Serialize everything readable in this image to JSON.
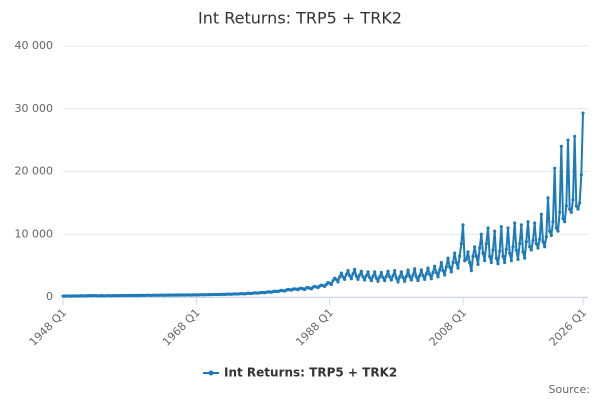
{
  "chart_data": {
    "type": "line",
    "title": "Int Returns: TRP5 + TRK2",
    "source": "Source:",
    "categories": [
      "1948 Q1",
      null,
      null,
      null,
      null,
      null,
      null,
      null,
      null,
      null,
      null,
      null,
      null,
      null,
      null,
      null,
      null,
      null,
      null,
      null,
      null,
      null,
      null,
      null,
      null,
      null,
      null,
      null,
      null,
      null,
      null,
      null,
      null,
      null,
      null,
      null,
      null,
      null,
      null,
      null,
      null,
      null,
      null,
      null,
      null,
      null,
      null,
      null,
      null,
      null,
      null,
      null,
      null,
      null,
      null,
      null,
      null,
      null,
      null,
      null,
      null,
      null,
      null,
      null,
      null,
      null,
      null,
      null,
      null,
      null,
      null,
      null,
      null,
      null,
      null,
      null,
      null,
      null,
      null,
      null,
      "1968 Q1",
      null,
      null,
      null,
      null,
      null,
      null,
      null,
      null,
      null,
      null,
      null,
      null,
      null,
      null,
      null,
      null,
      null,
      null,
      null,
      null,
      null,
      null,
      null,
      null,
      null,
      null,
      null,
      null,
      null,
      null,
      null,
      null,
      null,
      null,
      null,
      null,
      null,
      null,
      null,
      null,
      null,
      null,
      null,
      null,
      null,
      null,
      null,
      null,
      null,
      null,
      null,
      null,
      null,
      null,
      null,
      null,
      null,
      null,
      null,
      null,
      null,
      null,
      null,
      null,
      null,
      null,
      null,
      null,
      null,
      null,
      null,
      null,
      null,
      null,
      null,
      null,
      null,
      null,
      null,
      "1988 Q1",
      null,
      null,
      null,
      null,
      null,
      null,
      null,
      null,
      null,
      null,
      null,
      null,
      null,
      null,
      null,
      null,
      null,
      null,
      null,
      null,
      null,
      null,
      null,
      null,
      null,
      null,
      null,
      null,
      null,
      null,
      null,
      null,
      null,
      null,
      null,
      null,
      null,
      null,
      null,
      null,
      null,
      null,
      null,
      null,
      null,
      null,
      null,
      null,
      null,
      null,
      null,
      null,
      null,
      null,
      null,
      null,
      null,
      null,
      null,
      null,
      null,
      null,
      null,
      null,
      null,
      null,
      null,
      null,
      null,
      null,
      null,
      null,
      null,
      null,
      null,
      null,
      null,
      null,
      null,
      "2008 Q1",
      null,
      null,
      null,
      null,
      null,
      null,
      null,
      null,
      null,
      null,
      null,
      null,
      null,
      null,
      null,
      null,
      null,
      null,
      null,
      null,
      null,
      null,
      null,
      null,
      null,
      null,
      null,
      null,
      null,
      null,
      null,
      null,
      null,
      null,
      null,
      null,
      null,
      null,
      null,
      null,
      null,
      null,
      null,
      null,
      null,
      null,
      null,
      null,
      null,
      null,
      null,
      null,
      null,
      null,
      null,
      null,
      null,
      null,
      null,
      null,
      null,
      null,
      null,
      null,
      null,
      null,
      null,
      null,
      null,
      null,
      null,
      "2026 Q1"
    ],
    "series": [
      {
        "name": "Int Returns: TRP5 + TRK2",
        "color": "#1f7ab8",
        "values": [
          150,
          140,
          160,
          170,
          160,
          150,
          170,
          180,
          170,
          160,
          190,
          200,
          190,
          180,
          200,
          210,
          220,
          200,
          210,
          230,
          210,
          190,
          200,
          220,
          200,
          190,
          210,
          220,
          210,
          200,
          220,
          230,
          220,
          210,
          230,
          240,
          230,
          220,
          240,
          250,
          240,
          230,
          250,
          260,
          250,
          240,
          260,
          270,
          260,
          250,
          270,
          280,
          270,
          260,
          280,
          290,
          280,
          270,
          290,
          300,
          290,
          280,
          300,
          310,
          300,
          290,
          310,
          320,
          310,
          300,
          320,
          330,
          320,
          310,
          330,
          340,
          330,
          320,
          340,
          350,
          340,
          330,
          350,
          370,
          360,
          350,
          370,
          390,
          380,
          370,
          390,
          410,
          400,
          390,
          410,
          430,
          420,
          410,
          440,
          460,
          450,
          440,
          470,
          500,
          480,
          470,
          510,
          540,
          520,
          500,
          550,
          600,
          580,
          560,
          620,
          660,
          640,
          620,
          680,
          720,
          700,
          680,
          760,
          820,
          800,
          760,
          860,
          920,
          900,
          860,
          980,
          1050,
          1000,
          950,
          1100,
          1200,
          1150,
          1100,
          1250,
          1300,
          1250,
          1150,
          1350,
          1400,
          1300,
          1200,
          1450,
          1500,
          1400,
          1300,
          1550,
          1700,
          1600,
          1500,
          1750,
          1900,
          1800,
          1700,
          2000,
          2300,
          2200,
          2000,
          2600,
          3000,
          2800,
          2400,
          3200,
          3800,
          3200,
          2800,
          3600,
          4200,
          3400,
          2900,
          3700,
          4400,
          3300,
          2800,
          3500,
          4100,
          3200,
          2700,
          3400,
          4000,
          3100,
          2600,
          3300,
          4000,
          3000,
          2500,
          3200,
          3900,
          3100,
          2600,
          3300,
          4100,
          3200,
          2700,
          3400,
          4200,
          3000,
          2400,
          3200,
          4000,
          3100,
          2500,
          3300,
          4300,
          3300,
          2700,
          3500,
          4500,
          3200,
          2600,
          3400,
          4300,
          3400,
          2800,
          3700,
          4600,
          3600,
          2900,
          3900,
          4900,
          3900,
          3200,
          4300,
          5500,
          4200,
          3500,
          4800,
          6200,
          4800,
          4000,
          5500,
          7000,
          5500,
          4600,
          6500,
          8500,
          11500,
          5800,
          6000,
          7200,
          5500,
          4200,
          6500,
          8000,
          6500,
          5200,
          7800,
          10000,
          7000,
          5800,
          8500,
          11000,
          6500,
          5500,
          7500,
          10500,
          6200,
          5300,
          7300,
          11200,
          6500,
          5500,
          7600,
          11000,
          7000,
          5800,
          8000,
          11800,
          7500,
          6000,
          8500,
          11500,
          7200,
          6200,
          8800,
          12000,
          8000,
          7500,
          9000,
          11800,
          8500,
          7800,
          9200,
          13200,
          8800,
          8000,
          9600,
          15800,
          10500,
          9800,
          12000,
          20500,
          11000,
          10500,
          13500,
          24000,
          12500,
          12000,
          14500,
          25000,
          14000,
          13500,
          15500,
          25600,
          14500,
          14000,
          15000,
          19500,
          29300
        ]
      }
    ],
    "ylim": [
      0,
      40000
    ],
    "yticks": [
      0,
      {
        "value": 10000,
        "label": "10 000"
      },
      {
        "value": 20000,
        "label": "20 000"
      },
      {
        "value": 30000,
        "label": "30 000"
      },
      {
        "value": 40000,
        "label": "40 000"
      }
    ],
    "grid": true,
    "legend": "bottom"
  }
}
